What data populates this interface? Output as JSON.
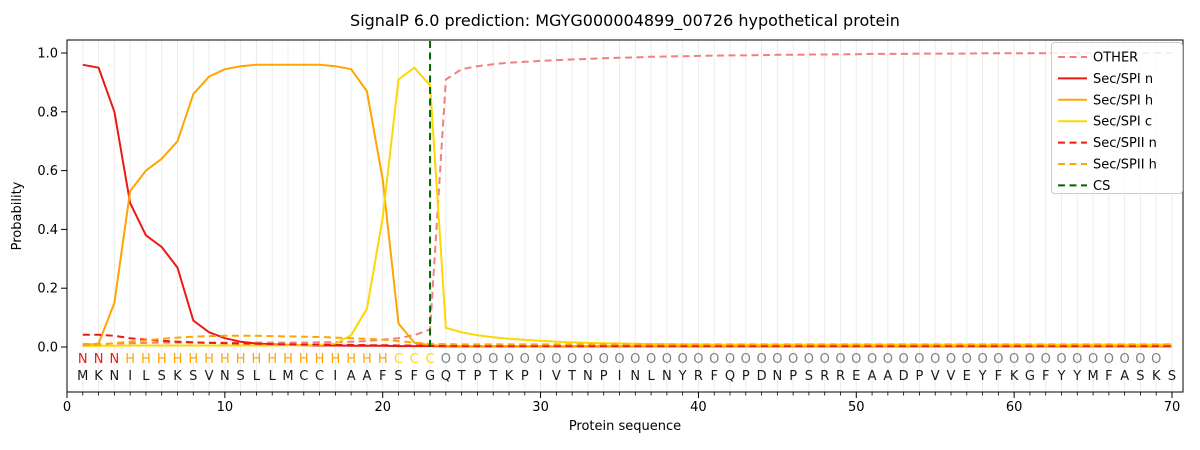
{
  "chart_data": {
    "type": "line",
    "title": "SignalP 6.0 prediction: MGYG000004899_00726 hypothetical protein",
    "xlabel": "Protein sequence",
    "ylabel": "Probability",
    "x_ticks": [
      0,
      10,
      20,
      30,
      40,
      50,
      60,
      70
    ],
    "y_ticks": [
      0.0,
      0.2,
      0.4,
      0.6,
      0.8,
      1.0
    ],
    "xlim": [
      0,
      70.7
    ],
    "ylim": [
      -0.15,
      1.04
    ],
    "grid": "vertical gridline at every residue position, no horizontal gridlines",
    "legend_position": "upper right",
    "x": [
      1,
      2,
      3,
      4,
      5,
      6,
      7,
      8,
      9,
      10,
      11,
      12,
      13,
      14,
      15,
      16,
      17,
      18,
      19,
      20,
      21,
      22,
      23,
      24,
      25,
      26,
      27,
      28,
      29,
      30,
      31,
      32,
      33,
      34,
      35,
      36,
      37,
      38,
      39,
      40,
      41,
      42,
      43,
      44,
      45,
      46,
      47,
      48,
      49,
      50,
      51,
      52,
      53,
      54,
      55,
      56,
      57,
      58,
      59,
      60,
      61,
      62,
      63,
      64,
      65,
      66,
      67,
      68,
      69,
      70
    ],
    "series": [
      {
        "name": "OTHER",
        "color": "#f08080",
        "style": "dashed",
        "values": [
          0.01,
          0.01,
          0.012,
          0.013,
          0.014,
          0.015,
          0.015,
          0.015,
          0.015,
          0.015,
          0.015,
          0.015,
          0.015,
          0.015,
          0.015,
          0.016,
          0.017,
          0.018,
          0.02,
          0.025,
          0.03,
          0.04,
          0.06,
          0.91,
          0.945,
          0.955,
          0.962,
          0.967,
          0.97,
          0.973,
          0.976,
          0.978,
          0.98,
          0.982,
          0.984,
          0.985,
          0.987,
          0.988,
          0.989,
          0.99,
          0.991,
          0.992,
          0.992,
          0.993,
          0.994,
          0.994,
          0.995,
          0.995,
          0.996,
          0.996,
          0.997,
          0.997,
          0.997,
          0.998,
          0.998,
          0.998,
          0.998,
          0.999,
          0.999,
          0.999,
          0.999,
          0.999,
          1.0,
          1.0,
          1.0,
          1.0,
          1.0,
          1.0,
          1.0,
          1.0
        ]
      },
      {
        "name": "Sec/SPI n",
        "color": "#eb1a10",
        "style": "solid",
        "values": [
          0.96,
          0.95,
          0.8,
          0.49,
          0.38,
          0.34,
          0.27,
          0.09,
          0.05,
          0.03,
          0.018,
          0.012,
          0.009,
          0.007,
          0.006,
          0.005,
          0.005,
          0.004,
          0.004,
          0.004,
          0.003,
          0.003,
          0.003,
          0.002,
          0.002,
          0.002,
          0.002,
          0.002,
          0.002,
          0.002,
          0.002,
          0.002,
          0.002,
          0.002,
          0.002,
          0.002,
          0.002,
          0.002,
          0.002,
          0.002,
          0.002,
          0.002,
          0.002,
          0.002,
          0.002,
          0.002,
          0.002,
          0.002,
          0.002,
          0.002,
          0.002,
          0.002,
          0.002,
          0.002,
          0.002,
          0.002,
          0.002,
          0.002,
          0.002,
          0.002,
          0.002,
          0.002,
          0.002,
          0.002,
          0.002,
          0.002,
          0.002,
          0.002,
          0.002,
          0.002
        ]
      },
      {
        "name": "Sec/SPI h",
        "color": "#ffa500",
        "style": "solid",
        "values": [
          0.005,
          0.012,
          0.15,
          0.53,
          0.6,
          0.64,
          0.7,
          0.86,
          0.92,
          0.945,
          0.955,
          0.96,
          0.96,
          0.96,
          0.96,
          0.96,
          0.955,
          0.945,
          0.87,
          0.57,
          0.08,
          0.015,
          0.006,
          0.004,
          0.003,
          0.003,
          0.003,
          0.003,
          0.003,
          0.003,
          0.003,
          0.003,
          0.003,
          0.003,
          0.003,
          0.003,
          0.003,
          0.003,
          0.003,
          0.003,
          0.003,
          0.003,
          0.003,
          0.003,
          0.003,
          0.003,
          0.003,
          0.003,
          0.003,
          0.003,
          0.003,
          0.003,
          0.003,
          0.003,
          0.003,
          0.003,
          0.003,
          0.003,
          0.003,
          0.003,
          0.003,
          0.003,
          0.003,
          0.003,
          0.003,
          0.003,
          0.003,
          0.003,
          0.003,
          0.003
        ]
      },
      {
        "name": "Sec/SPI c",
        "color": "#ffd700",
        "style": "solid",
        "values": [
          0.004,
          0.004,
          0.004,
          0.005,
          0.005,
          0.005,
          0.005,
          0.005,
          0.005,
          0.005,
          0.005,
          0.005,
          0.005,
          0.006,
          0.006,
          0.007,
          0.012,
          0.04,
          0.13,
          0.44,
          0.91,
          0.95,
          0.89,
          0.065,
          0.05,
          0.04,
          0.033,
          0.028,
          0.024,
          0.021,
          0.018,
          0.016,
          0.014,
          0.013,
          0.012,
          0.011,
          0.01,
          0.01,
          0.009,
          0.009,
          0.008,
          0.008,
          0.008,
          0.008,
          0.008,
          0.008,
          0.008,
          0.008,
          0.008,
          0.008,
          0.008,
          0.008,
          0.008,
          0.008,
          0.008,
          0.008,
          0.008,
          0.008,
          0.008,
          0.008,
          0.008,
          0.008,
          0.008,
          0.008,
          0.008,
          0.008,
          0.008,
          0.008,
          0.008,
          0.008
        ]
      },
      {
        "name": "Sec/SPII n",
        "color": "#eb1a10",
        "style": "dashed",
        "values": [
          0.042,
          0.042,
          0.038,
          0.03,
          0.025,
          0.021,
          0.018,
          0.016,
          0.014,
          0.013,
          0.012,
          0.011,
          0.01,
          0.009,
          0.008,
          0.008,
          0.007,
          0.007,
          0.006,
          0.006,
          0.005,
          0.005,
          0.004,
          0.004,
          0.003,
          0.003,
          0.003,
          0.003,
          0.003,
          0.003,
          0.003,
          0.003,
          0.003,
          0.003,
          0.003,
          0.003,
          0.003,
          0.003,
          0.003,
          0.003,
          0.003,
          0.003,
          0.003,
          0.003,
          0.003,
          0.003,
          0.003,
          0.003,
          0.003,
          0.003,
          0.003,
          0.003,
          0.003,
          0.003,
          0.003,
          0.003,
          0.003,
          0.003,
          0.003,
          0.003,
          0.003,
          0.003,
          0.003,
          0.003,
          0.003,
          0.003,
          0.003,
          0.003,
          0.003,
          0.003
        ]
      },
      {
        "name": "Sec/SPII h",
        "color": "#ffa500",
        "style": "dashed",
        "values": [
          0.005,
          0.008,
          0.013,
          0.018,
          0.023,
          0.028,
          0.032,
          0.035,
          0.037,
          0.038,
          0.038,
          0.038,
          0.037,
          0.036,
          0.035,
          0.034,
          0.032,
          0.03,
          0.028,
          0.025,
          0.02,
          0.015,
          0.011,
          0.01,
          0.009,
          0.009,
          0.009,
          0.009,
          0.009,
          0.009,
          0.009,
          0.009,
          0.009,
          0.009,
          0.009,
          0.009,
          0.009,
          0.009,
          0.009,
          0.009,
          0.009,
          0.009,
          0.009,
          0.009,
          0.009,
          0.009,
          0.009,
          0.009,
          0.009,
          0.009,
          0.009,
          0.009,
          0.009,
          0.009,
          0.009,
          0.009,
          0.009,
          0.009,
          0.009,
          0.009,
          0.009,
          0.009,
          0.009,
          0.009,
          0.009,
          0.009,
          0.009,
          0.009,
          0.009,
          0.009
        ]
      },
      {
        "name": "CS",
        "color": "#006400",
        "style": "dashed",
        "type": "vline",
        "position": 23
      }
    ],
    "annotation_row": "NNNHHHHHHHHHHHHHHHHHCCCOOOOOOOOOOOOOOOOOOOOOOOOOOOOOOOOOOOOOOOOOOOOOO",
    "sequence_row": "MKNILSKSVNSLLMCCIAAFSFGQTPTKPIVTNPINLNYRFQPDNPSRREAADPVVEYFKGFYYMFASKS",
    "annotation_colors": {
      "N": "#eb1a10",
      "H": "#ffa500",
      "C": "#ffd700",
      "O": "#808080"
    },
    "sequence_color": "#1a1a1a",
    "grid_color": "#ececec",
    "spine_color": "#000000"
  }
}
